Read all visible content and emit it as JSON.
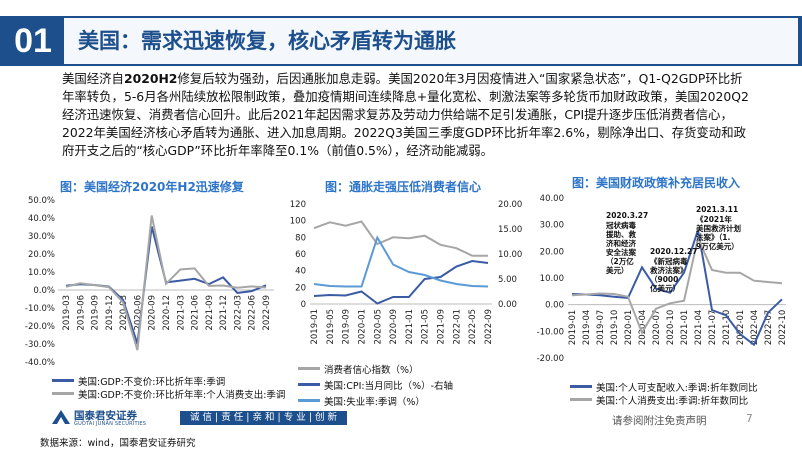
{
  "header": {
    "section_number": "01",
    "title": "美国：需求迅速恢复，核心矛盾转为通胀"
  },
  "summary": {
    "lead": "美国经济自",
    "lead_bold": "2020H2",
    "body": "修复后较为强劲，后因通胀加息走弱。美国2020年3月因疫情进入“国家紧急状态”，Q1-Q2GDP环比折年率转负，5-6月各州陆续放松限制政策，叠加疫情期间连续降息+量化宽松、刺激法案等多轮货币加财政政策，美国2020Q2经济迅速恢复、消费者信心回升。此后2021年起因需求复苏及劳动力供给端不足引发通胀，CPI提升逐步压低消费者信心，2022年美国经济核心矛盾转为通胀、进入加息周期。2022Q3美国三季度GDP环比折年率2.6%，剔除净出口、存货变动和政府开支之后的“核心GDP”环比折年率降至0.1%（前值0.5%），经济动能减弱。"
  },
  "chart1_title": "图：美国经济2020年H2迅速修复",
  "chart2_title": "图：通胀走强压低消费者信心",
  "chart3_title": "图：美国财政政策补充居民收入",
  "chart_data": [
    {
      "type": "line",
      "title": "图：美国经济2020年H2迅速修复",
      "x": [
        "2019-03",
        "2019-06",
        "2019-09",
        "2019-12",
        "2020-03",
        "2020-06",
        "2020-09",
        "2020-12",
        "2021-03",
        "2021-06",
        "2021-09",
        "2021-12",
        "2022-03",
        "2022-06",
        "2022-09"
      ],
      "y_ticks": [
        "50.0%",
        "40.0%",
        "30.0%",
        "20.0%",
        "10.0%",
        "0.0%",
        "-10.0%",
        "-20.0%",
        "-30.0%",
        "-40.0%"
      ],
      "x_ticks": [
        "2019-03",
        "2019-06",
        "2019-09",
        "2019-12",
        "2020-03",
        "2020-06",
        "2020-09",
        "2020-12",
        "2021-03",
        "2021-06",
        "2021-09",
        "2021-12",
        "2022-03",
        "2022-06",
        "2022-09"
      ],
      "ylim": [
        -40,
        50
      ],
      "series": [
        {
          "name": "美国:GDP:不变价:环比折年率:季调",
          "color": "#3b5ba5",
          "values": [
            2.4,
            3.2,
            2.8,
            1.9,
            -5.5,
            -29.9,
            35.3,
            4.2,
            5.2,
            6.2,
            3.3,
            7.0,
            -1.6,
            -0.6,
            2.6
          ]
        },
        {
          "name": "美国:GDP:不变价:环比折年率:个人消费支出:季调",
          "color": "#a6a6a6",
          "values": [
            1.8,
            3.7,
            2.7,
            1.6,
            -6.9,
            -33.4,
            41.4,
            3.4,
            11.4,
            12.0,
            2.3,
            2.5,
            1.3,
            2.0,
            1.4
          ]
        }
      ]
    },
    {
      "type": "line",
      "title": "图：通胀走强压低消费者信心",
      "x": [
        "2019-01",
        "2019-05",
        "2019-09",
        "2020-01",
        "2020-05",
        "2020-09",
        "2021-01",
        "2021-05",
        "2021-09",
        "2022-01",
        "2022-05",
        "2022-09"
      ],
      "x_ticks": [
        "2019-01",
        "2019-05",
        "2019-09",
        "2020-01",
        "2020-05",
        "2020-09",
        "2021-01",
        "2021-05",
        "2021-09",
        "2022-01",
        "2022-05",
        "2022-09"
      ],
      "y_ticks_left": [
        "120",
        "100",
        "80",
        "60",
        "40",
        "20",
        "0"
      ],
      "y_ticks_right": [
        "20.00",
        "15.00",
        "10.00",
        "5.00",
        "0.00"
      ],
      "ylim_left": [
        0,
        120
      ],
      "ylim_right": [
        0,
        20
      ],
      "series": [
        {
          "name": "消费者信心指数（%）",
          "axis": "left",
          "color": "#a6a6a6",
          "values": [
            91,
            98,
            94,
            99,
            72,
            80,
            79,
            82,
            71,
            67,
            58,
            58
          ]
        },
        {
          "name": "美国:CPI:当月同比（%）-右轴",
          "axis": "right",
          "color": "#3b5ba5",
          "values": [
            1.6,
            1.8,
            1.7,
            2.5,
            0.1,
            1.4,
            1.4,
            5.0,
            5.4,
            7.5,
            8.6,
            8.2
          ]
        },
        {
          "name": "美国:失业率:季调（%）",
          "axis": "right",
          "color": "#5b9bd5",
          "values": [
            4.0,
            3.6,
            3.5,
            3.5,
            13.3,
            7.9,
            6.4,
            5.8,
            4.7,
            4.0,
            3.6,
            3.5
          ]
        }
      ]
    },
    {
      "type": "line",
      "title": "图：美国财政政策补充居民收入",
      "x": [
        "2019-01",
        "2019-04",
        "2019-07",
        "2019-10",
        "2020-01",
        "2020-04",
        "2020-07",
        "2020-10",
        "2021-01",
        "2021-04",
        "2021-07",
        "2021-10",
        "2022-01",
        "2022-04",
        "2022-07",
        "2022-10"
      ],
      "x_ticks": [
        "2019-01",
        "2019-04",
        "2019-07",
        "2019-10",
        "2020-01",
        "2020-04",
        "2020-07",
        "2020-10",
        "2021-01",
        "2021-04",
        "2021-07",
        "2021-10",
        "2022-01",
        "2022-04",
        "2022-07",
        "2022-10"
      ],
      "y_ticks": [
        "40.00",
        "30.00",
        "20.00",
        "10.00",
        "0.00",
        "-10.00",
        "-20.00"
      ],
      "ylim": [
        -20,
        40
      ],
      "series": [
        {
          "name": "美国:个人可支配收入:季调:折年数同比",
          "color": "#3b5ba5",
          "values": [
            4.0,
            3.8,
            3.5,
            3.0,
            2.5,
            14.0,
            6.0,
            4.5,
            12.0,
            28.0,
            -2.0,
            -4.0,
            -11.0,
            -15.0,
            -3.0,
            2.0
          ]
        },
        {
          "name": "美国:个人消费支出:季调:折年数同比",
          "color": "#a6a6a6",
          "values": [
            3.5,
            3.8,
            4.2,
            4.0,
            3.0,
            -10.5,
            -1.5,
            0.5,
            1.5,
            25.0,
            13.0,
            12.0,
            12.0,
            9.0,
            8.5,
            8.0
          ]
        }
      ],
      "annotations": [
        {
          "label": "2020.3.27\n冠状病毒援助、救济和经济安全法案（2万亿美元）"
        },
        {
          "label": "2020.12.27\n《新冠病毒救济法案》（9000亿美元）"
        },
        {
          "label": "2021.3.11\n《2021年美国救济计划法案》（1.9万亿美元）"
        }
      ]
    }
  ],
  "footer": {
    "logo_text": "国泰君安证券",
    "logo_sub": "GUOTAI JUNAN SECURITIES",
    "slogan": "诚 信 | 责 任 | 亲 和 | 专 业 | 创 新",
    "source": "数据来源：wind，国泰君安证券研究",
    "disclaimer": "请参阅附注免责声明",
    "page_number": "7"
  },
  "colors": {
    "brand": "#1c4f8c",
    "accent": "#2e75c9",
    "series_dark": "#3b5ba5",
    "series_gray": "#a6a6a6",
    "series_light": "#5b9bd5"
  }
}
